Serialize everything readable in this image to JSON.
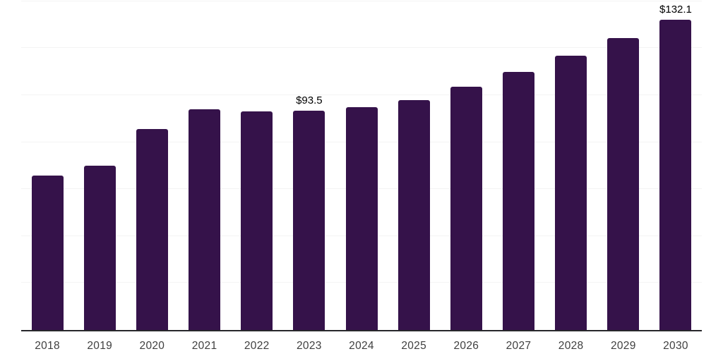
{
  "chart_data": {
    "type": "bar",
    "title": "",
    "xlabel": "",
    "ylabel": "",
    "categories": [
      "2018",
      "2019",
      "2020",
      "2021",
      "2022",
      "2023",
      "2024",
      "2025",
      "2026",
      "2027",
      "2028",
      "2029",
      "2030"
    ],
    "values": [
      65.7,
      70.0,
      85.7,
      94.0,
      93.2,
      93.5,
      94.8,
      97.9,
      103.7,
      110.0,
      116.9,
      124.2,
      132.1
    ],
    "data_labels": [
      "",
      "",
      "",
      "",
      "",
      "$93.5",
      "",
      "",
      "",
      "",
      "",
      "",
      "$132.1"
    ],
    "ylim": [
      0,
      140.5
    ],
    "gridline_values": [
      20,
      40,
      60,
      80,
      100,
      120,
      140
    ],
    "grid": "horizontal-only, no y-axis tick labels",
    "legend": "none",
    "bar_color": "#35124a",
    "axis_line_color": "#27272b",
    "gridline_color": "#f4f4f4",
    "tick_label_color": "#3f3f3f",
    "data_label_color": "#000000",
    "background_color": "#ffffff"
  }
}
